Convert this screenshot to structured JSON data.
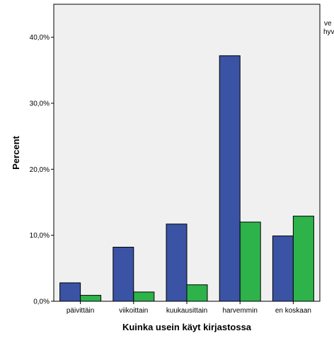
{
  "chart_data": {
    "type": "bar",
    "xlabel": "Kuinka usein käyt kirjastossa",
    "ylabel": "Percent",
    "categories": [
      "päivittäin",
      "viikoittain",
      "kuukausittain",
      "harvemmin",
      "en koskaan"
    ],
    "series": [
      {
        "name": "",
        "color": "#3a53a4",
        "values": [
          2.8,
          8.2,
          11.7,
          37.2,
          9.9
        ]
      },
      {
        "name": "",
        "color": "#2db34a",
        "values": [
          0.9,
          1.4,
          2.5,
          12.0,
          12.9
        ]
      }
    ],
    "ylim": [
      0,
      45
    ],
    "yticks": [
      "0,0%",
      "10,0%",
      "20,0%",
      "30,0%",
      "40,0%"
    ],
    "ytick_values": [
      0,
      10,
      20,
      30,
      40
    ],
    "legend_fragments": [
      "ve",
      "hyv"
    ],
    "grid": false,
    "plot_background": "#f0f0f0"
  }
}
